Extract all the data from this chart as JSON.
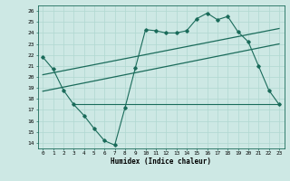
{
  "title": "",
  "xlabel": "Humidex (Indice chaleur)",
  "ylabel": "",
  "bg_color": "#cde8e4",
  "line_color": "#1a6b5a",
  "grid_color": "#b0d8d0",
  "xlim": [
    -0.5,
    23.5
  ],
  "ylim": [
    13.5,
    26.5
  ],
  "xticks": [
    0,
    1,
    2,
    3,
    4,
    5,
    6,
    7,
    8,
    9,
    10,
    11,
    12,
    13,
    14,
    15,
    16,
    17,
    18,
    19,
    20,
    21,
    22,
    23
  ],
  "yticks": [
    14,
    15,
    16,
    17,
    18,
    19,
    20,
    21,
    22,
    23,
    24,
    25,
    26
  ],
  "main_x": [
    0,
    1,
    2,
    3,
    4,
    5,
    6,
    7,
    8,
    9,
    10,
    11,
    12,
    13,
    14,
    15,
    16,
    17,
    18,
    19,
    20,
    21,
    22,
    23
  ],
  "main_y": [
    21.8,
    20.7,
    18.8,
    17.5,
    16.5,
    15.3,
    14.2,
    13.8,
    17.2,
    20.8,
    24.3,
    24.2,
    24.0,
    24.0,
    24.2,
    25.3,
    25.8,
    25.2,
    25.5,
    24.1,
    23.2,
    21.0,
    18.8,
    17.5
  ],
  "trend1_x": [
    0,
    23
  ],
  "trend1_y": [
    20.2,
    24.4
  ],
  "trend2_x": [
    0,
    23
  ],
  "trend2_y": [
    18.7,
    23.0
  ],
  "hline_y": 17.5,
  "hline_x": [
    3,
    23
  ]
}
